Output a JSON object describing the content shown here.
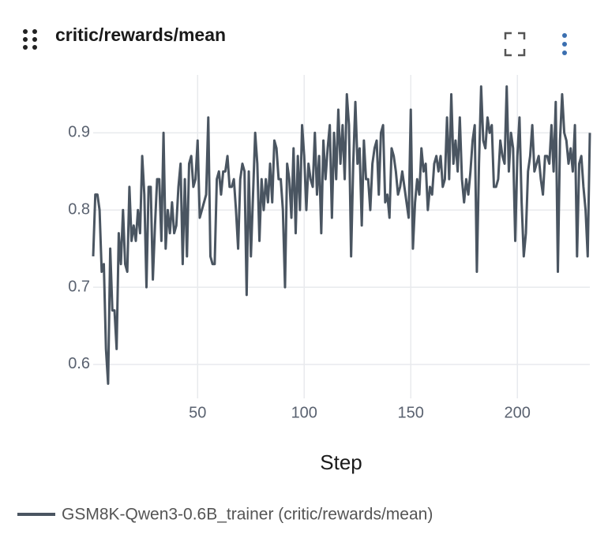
{
  "chart_data": {
    "type": "line",
    "title": "critic/rewards/mean",
    "xlabel": "Step",
    "xlim": [
      1,
      234
    ],
    "xticks": [
      50,
      100,
      150,
      200
    ],
    "ylim": [
      0.556,
      0.975
    ],
    "yticks": [
      0.6,
      0.7,
      0.8,
      0.9
    ],
    "grid": true,
    "legend": "bottom",
    "x": [
      1,
      2,
      3,
      4,
      5,
      6,
      7,
      8,
      9,
      10,
      11,
      12,
      13,
      14,
      15,
      16,
      17,
      18,
      19,
      20,
      21,
      22,
      23,
      24,
      25,
      26,
      27,
      28,
      29,
      30,
      31,
      32,
      33,
      34,
      35,
      36,
      37,
      38,
      39,
      40,
      41,
      42,
      43,
      44,
      45,
      46,
      47,
      48,
      49,
      50,
      51,
      52,
      53,
      54,
      55,
      56,
      57,
      58,
      59,
      60,
      61,
      62,
      63,
      64,
      65,
      66,
      67,
      68,
      69,
      70,
      71,
      72,
      73,
      74,
      75,
      76,
      77,
      78,
      79,
      80,
      81,
      82,
      83,
      84,
      85,
      86,
      87,
      88,
      89,
      90,
      91,
      92,
      93,
      94,
      95,
      96,
      97,
      98,
      99,
      100,
      101,
      102,
      103,
      104,
      105,
      106,
      107,
      108,
      109,
      110,
      111,
      112,
      113,
      114,
      115,
      116,
      117,
      118,
      119,
      120,
      121,
      122,
      123,
      124,
      125,
      126,
      127,
      128,
      129,
      130,
      131,
      132,
      133,
      134,
      135,
      136,
      137,
      138,
      139,
      140,
      141,
      142,
      143,
      144,
      145,
      146,
      147,
      148,
      149,
      150,
      151,
      152,
      153,
      154,
      155,
      156,
      157,
      158,
      159,
      160,
      161,
      162,
      163,
      164,
      165,
      166,
      167,
      168,
      169,
      170,
      171,
      172,
      173,
      174,
      175,
      176,
      177,
      178,
      179,
      180,
      181,
      182,
      183,
      184,
      185,
      186,
      187,
      188,
      189,
      190,
      191,
      192,
      193,
      194,
      195,
      196,
      197,
      198,
      199,
      200,
      201,
      202,
      203,
      204,
      205,
      206,
      207,
      208,
      209,
      210,
      211,
      212,
      213,
      214,
      215,
      216,
      217,
      218,
      219,
      220,
      221,
      222,
      223,
      224,
      225,
      226,
      227,
      228,
      229,
      230,
      231,
      232,
      233,
      234
    ],
    "series": [
      {
        "name": "GSM8K-Qwen3-0.6B_trainer (critic/rewards/mean)",
        "color": "#4a5561",
        "values": [
          0.74,
          0.82,
          0.82,
          0.8,
          0.72,
          0.73,
          0.62,
          0.575,
          0.75,
          0.67,
          0.67,
          0.62,
          0.77,
          0.73,
          0.8,
          0.73,
          0.72,
          0.83,
          0.76,
          0.78,
          0.76,
          0.8,
          0.77,
          0.87,
          0.82,
          0.7,
          0.83,
          0.83,
          0.71,
          0.78,
          0.84,
          0.84,
          0.76,
          0.9,
          0.75,
          0.8,
          0.77,
          0.81,
          0.77,
          0.78,
          0.83,
          0.86,
          0.73,
          0.84,
          0.74,
          0.86,
          0.87,
          0.83,
          0.84,
          0.89,
          0.79,
          0.8,
          0.81,
          0.82,
          0.92,
          0.74,
          0.73,
          0.73,
          0.84,
          0.85,
          0.82,
          0.85,
          0.85,
          0.87,
          0.83,
          0.83,
          0.84,
          0.8,
          0.75,
          0.84,
          0.86,
          0.85,
          0.69,
          0.85,
          0.74,
          0.82,
          0.9,
          0.86,
          0.76,
          0.84,
          0.8,
          0.84,
          0.81,
          0.86,
          0.81,
          0.89,
          0.88,
          0.84,
          0.84,
          0.8,
          0.7,
          0.86,
          0.84,
          0.79,
          0.88,
          0.77,
          0.87,
          0.8,
          0.91,
          0.87,
          0.8,
          0.86,
          0.84,
          0.83,
          0.9,
          0.82,
          0.87,
          0.77,
          0.89,
          0.84,
          0.88,
          0.91,
          0.79,
          0.9,
          0.84,
          0.93,
          0.86,
          0.91,
          0.84,
          0.95,
          0.91,
          0.74,
          0.86,
          0.94,
          0.86,
          0.88,
          0.78,
          0.89,
          0.84,
          0.84,
          0.8,
          0.86,
          0.88,
          0.89,
          0.82,
          0.9,
          0.91,
          0.81,
          0.82,
          0.79,
          0.88,
          0.87,
          0.85,
          0.82,
          0.83,
          0.85,
          0.83,
          0.81,
          0.79,
          0.93,
          0.75,
          0.81,
          0.84,
          0.82,
          0.88,
          0.85,
          0.86,
          0.8,
          0.83,
          0.82,
          0.86,
          0.87,
          0.85,
          0.87,
          0.83,
          0.84,
          0.92,
          0.84,
          0.95,
          0.86,
          0.89,
          0.85,
          0.92,
          0.84,
          0.81,
          0.84,
          0.82,
          0.85,
          0.89,
          0.91,
          0.72,
          0.86,
          0.96,
          0.89,
          0.88,
          0.92,
          0.9,
          0.91,
          0.83,
          0.83,
          0.84,
          0.89,
          0.87,
          0.86,
          0.96,
          0.85,
          0.9,
          0.88,
          0.76,
          0.87,
          0.92,
          0.81,
          0.74,
          0.77,
          0.85,
          0.87,
          0.91,
          0.85,
          0.86,
          0.87,
          0.84,
          0.82,
          0.87,
          0.87,
          0.86,
          0.91,
          0.85,
          0.94,
          0.72,
          0.89,
          0.95,
          0.9,
          0.89,
          0.86,
          0.88,
          0.85,
          0.91,
          0.74,
          0.86,
          0.87,
          0.83,
          0.8,
          0.74,
          0.9
        ]
      }
    ]
  }
}
